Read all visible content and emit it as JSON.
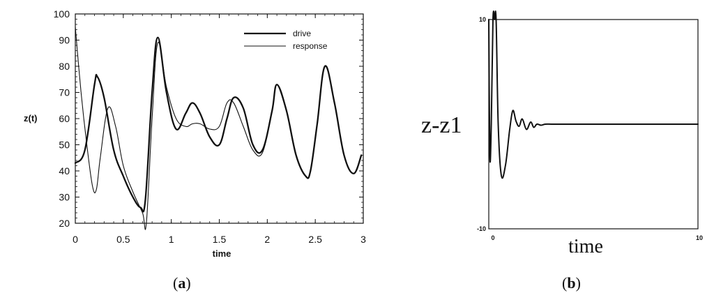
{
  "chart_data": [
    {
      "panel": "(a)",
      "type": "line",
      "xlabel": "time",
      "ylabel": "z(t)",
      "xlim": [
        0,
        3
      ],
      "ylim": [
        20,
        100
      ],
      "x_ticks": [
        "0",
        "0.5",
        "1",
        "1.5",
        "2",
        "2.5",
        "3"
      ],
      "y_ticks": [
        "20",
        "30",
        "40",
        "50",
        "60",
        "70",
        "80",
        "90",
        "100"
      ],
      "grid": false,
      "legend_position": "top-right",
      "series": [
        {
          "name": "drive",
          "style": "thick",
          "x": [
            0,
            0.1,
            0.2,
            0.23,
            0.3,
            0.4,
            0.5,
            0.6,
            0.68,
            0.73,
            0.8,
            0.86,
            0.95,
            1.05,
            1.15,
            1.22,
            1.3,
            1.4,
            1.5,
            1.58,
            1.65,
            1.75,
            1.85,
            1.95,
            2.05,
            2.1,
            2.2,
            2.3,
            2.4,
            2.45,
            2.52,
            2.6,
            2.7,
            2.8,
            2.9,
            2.98
          ],
          "y": [
            43,
            48,
            73,
            76,
            68,
            48,
            38,
            30,
            26,
            29,
            70,
            91,
            70,
            56,
            62,
            66,
            62,
            53,
            50,
            60,
            68,
            64,
            50,
            48,
            63,
            73,
            63,
            46,
            38,
            40,
            58,
            80,
            66,
            46,
            39,
            46
          ]
        },
        {
          "name": "response",
          "style": "thin",
          "x": [
            0,
            0.06,
            0.12,
            0.18,
            0.22,
            0.26,
            0.34,
            0.42,
            0.5,
            0.6,
            0.7,
            0.74,
            0.8,
            0.86,
            0.95,
            1.05,
            1.15,
            1.22,
            1.3,
            1.4,
            1.5,
            1.58,
            1.65,
            1.75,
            1.85,
            1.95,
            2.05,
            2.1,
            2.2,
            2.3,
            2.4,
            2.45,
            2.52,
            2.6,
            2.7,
            2.8,
            2.9,
            2.98
          ],
          "y": [
            95,
            70,
            50,
            34,
            33,
            45,
            64,
            57,
            42,
            32,
            24,
            20,
            60,
            89,
            72,
            60,
            57,
            58,
            58,
            56,
            57,
            66,
            66,
            57,
            48,
            47,
            63,
            73,
            63,
            46,
            38,
            40,
            58,
            80,
            66,
            46,
            39,
            46
          ]
        }
      ]
    },
    {
      "panel": "(b)",
      "type": "line",
      "xlabel": "time",
      "ylabel": "z-z1",
      "xlim": [
        0,
        10
      ],
      "ylim": [
        -10,
        10
      ],
      "x_ticks": [
        "0",
        "10"
      ],
      "y_ticks": [
        "10",
        "-10"
      ],
      "grid": false,
      "series": [
        {
          "name": "",
          "x": [
            0,
            0.05,
            0.12,
            0.2,
            0.28,
            0.35,
            0.45,
            0.6,
            0.8,
            1.0,
            1.15,
            1.3,
            1.45,
            1.6,
            1.8,
            2.0,
            2.15,
            2.3,
            2.5,
            2.7,
            3.0,
            3.5,
            4.5,
            6,
            8,
            10
          ],
          "y": [
            10,
            -3,
            0,
            10,
            10,
            10,
            0,
            -4.9,
            -3.9,
            -0.5,
            1.3,
            0.3,
            -0.2,
            0.5,
            -0.5,
            0.2,
            -0.3,
            0.0,
            -0.1,
            0.0,
            0,
            0,
            0,
            0,
            0,
            0
          ]
        }
      ]
    }
  ],
  "panels": {
    "a": {
      "label_open": "(",
      "label_letter": "a",
      "label_close": ")"
    },
    "b": {
      "label_open": "(",
      "label_letter": "b",
      "label_close": ")"
    }
  }
}
